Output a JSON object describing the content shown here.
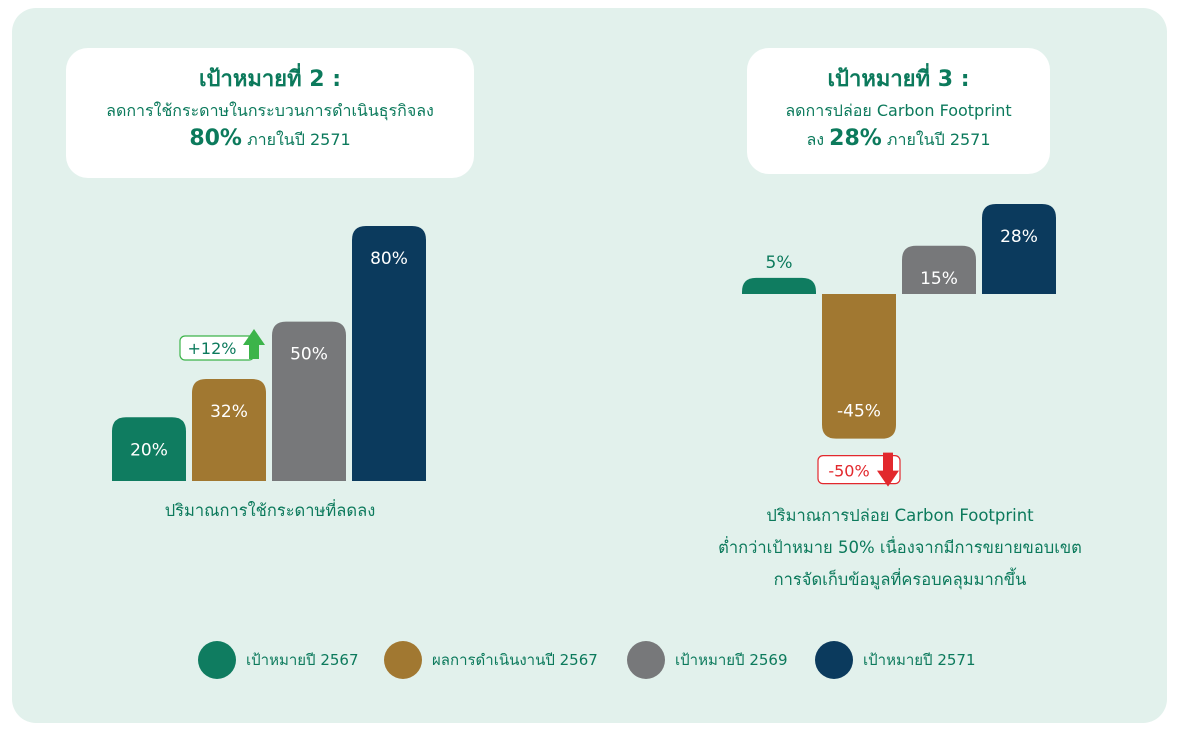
{
  "goal2": {
    "title": "เป้าหมายที่ 2 :",
    "line1": "ลดการใช้กระดาษในกระบวนการดำเนินธุรกิจลง",
    "big": "80%",
    "suffix": " ภายในปี 2571"
  },
  "goal3": {
    "title": "เป้าหมายที่ 3 :",
    "line1": "ลดการปล่อย Carbon Footprint",
    "prefix": "ลง ",
    "big": "28%",
    "suffix": " ภายในปี 2571"
  },
  "colors": {
    "target_2567": "#0f7c60",
    "result_2567": "#a17831",
    "target_2569": "#77787a",
    "target_2571": "#0b3a5d",
    "increase": "#3cb44a",
    "decrease": "#e2282d"
  },
  "chart_data": [
    {
      "type": "bar",
      "categories": [
        "เป้าหมายปี 2567",
        "ผลการดำเนินงานปี 2567",
        "เป้าหมายปี 2569",
        "เป้าหมายปี 2571"
      ],
      "values": [
        20,
        32,
        50,
        80
      ],
      "labels": [
        "20%",
        "32%",
        "50%",
        "80%"
      ],
      "annotation": {
        "text": "+12%",
        "direction": "up"
      },
      "xlabel": "ปริมาณการใช้กระดาษที่ลดลง"
    },
    {
      "type": "bar",
      "categories": [
        "เป้าหมายปี 2567",
        "ผลการดำเนินงานปี 2567",
        "เป้าหมายปี 2569",
        "เป้าหมายปี 2571"
      ],
      "values": [
        5,
        -45,
        15,
        28
      ],
      "labels": [
        "5%",
        "-45%",
        "15%",
        "28%"
      ],
      "annotation": {
        "text": "-50%",
        "direction": "down"
      },
      "xlabel_lines": [
        "ปริมาณการปล่อย Carbon Footprint",
        "ต่ำกว่าเป้าหมาย 50% เนื่องจากมีการขยายขอบเขต",
        "การจัดเก็บข้อมูลที่ครอบคลุมมากขึ้น"
      ]
    }
  ],
  "legend": [
    {
      "label": "เป้าหมายปี 2567",
      "color": "#0f7c60"
    },
    {
      "label": "ผลการดำเนินงานปี 2567",
      "color": "#a17831"
    },
    {
      "label": "เป้าหมายปี 2569",
      "color": "#77787a"
    },
    {
      "label": "เป้าหมายปี 2571",
      "color": "#0b3a5d"
    }
  ]
}
